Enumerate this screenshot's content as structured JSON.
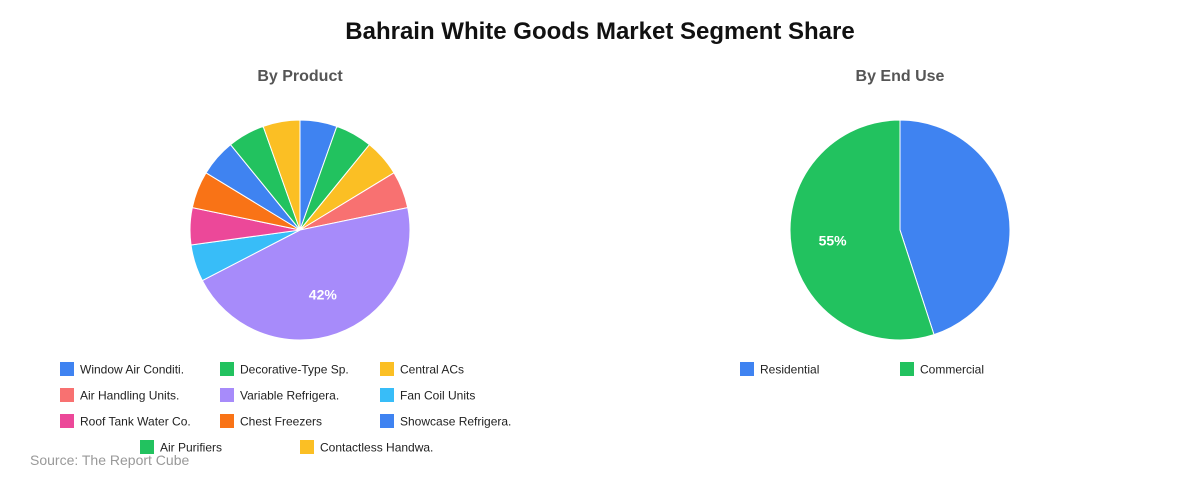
{
  "title": "Bahrain White Goods Market Segment Share",
  "source": "Source: The Report Cube",
  "chart_data": [
    {
      "type": "pie",
      "title": "By Product",
      "labels": [
        "Window Air Conditi.",
        "Decorative-Type Sp.",
        "Central ACs",
        "Air Handling Units.",
        "Variable Refrigera.",
        "Fan Coil Units",
        "Roof Tank Water Co.",
        "Chest Freezers",
        "Showcase Refrigera.",
        "Air Purifiers",
        "Contactless Handwa."
      ],
      "values": [
        5,
        5,
        5,
        5,
        42,
        5,
        5,
        5,
        5,
        5,
        5
      ],
      "colors": [
        "#3f83f1",
        "#22c25f",
        "#fbbf24",
        "#f87171",
        "#a78bfa",
        "#38bdf8",
        "#ec4899",
        "#f97316",
        "#3f83f1",
        "#22c25f",
        "#fbbf24"
      ],
      "data_labels": [
        "",
        "",
        "",
        "",
        "42%",
        "",
        "",
        "",
        "",
        "",
        ""
      ],
      "legend_position": "bottom"
    },
    {
      "type": "pie",
      "title": "By End Use",
      "labels": [
        "Residential",
        "Commercial"
      ],
      "values": [
        45,
        55
      ],
      "colors": [
        "#3f83f1",
        "#22c25f"
      ],
      "data_labels": [
        "",
        "55%"
      ],
      "legend_position": "bottom"
    }
  ]
}
